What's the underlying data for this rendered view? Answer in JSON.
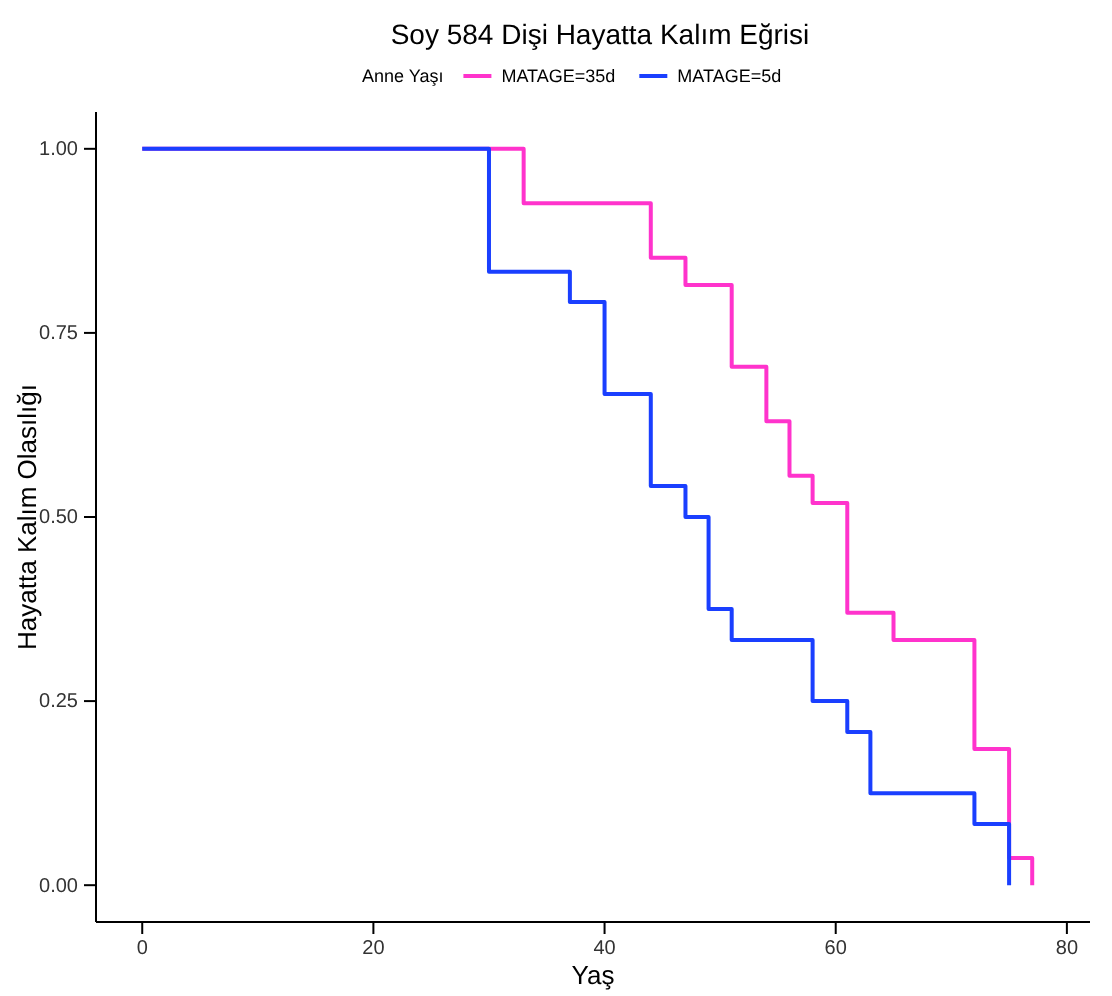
{
  "chart_data": {
    "type": "step",
    "title": "Soy 584 Dişi Hayatta Kalım Eğrisi",
    "xlabel": "Yaş",
    "ylabel": "Hayatta Kalım Olasılığı",
    "legend_title": "Anne Yaşı",
    "legend": "top",
    "grid": false,
    "xlim": [
      -4,
      82
    ],
    "xticks": [
      0,
      20,
      40,
      60,
      80
    ],
    "ylim": [
      -0.05,
      1.05
    ],
    "yticks": [
      {
        "value": 0,
        "label": "0.00"
      },
      {
        "value": 0.25,
        "label": "0.25"
      },
      {
        "value": 0.5,
        "label": "0.50"
      },
      {
        "value": 0.75,
        "label": "0.75"
      },
      {
        "value": 1,
        "label": "1.00"
      }
    ],
    "series": [
      {
        "name": "MATAGE=35d",
        "color": "#ff33cc",
        "x": [
          0,
          33,
          44,
          47,
          51,
          54,
          56,
          58,
          61,
          65,
          72,
          75,
          77
        ],
        "values": [
          1,
          0.926,
          0.852,
          0.815,
          0.704,
          0.63,
          0.556,
          0.519,
          0.37,
          0.333,
          0.185,
          0.037,
          0
        ]
      },
      {
        "name": "MATAGE=5d",
        "color": "#1a3fff",
        "x": [
          0,
          30,
          37,
          40,
          44,
          47,
          49,
          51,
          58,
          61,
          63,
          72,
          75
        ],
        "values": [
          1,
          0.833,
          0.792,
          0.667,
          0.542,
          0.5,
          0.375,
          0.333,
          0.25,
          0.208,
          0.125,
          0.083,
          0
        ]
      }
    ]
  }
}
